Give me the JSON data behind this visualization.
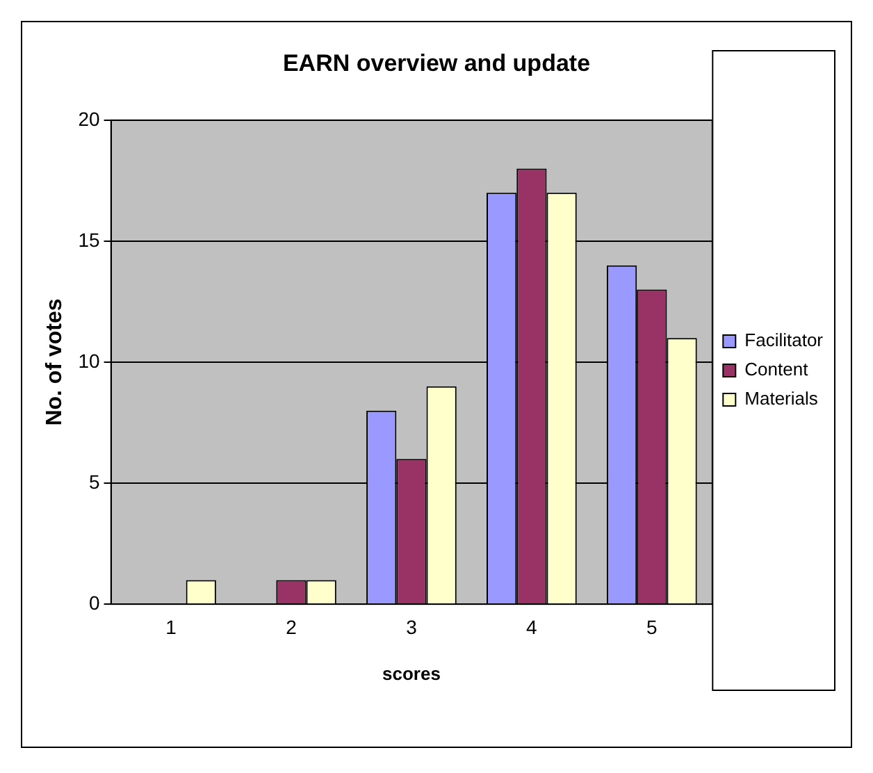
{
  "chart_data": {
    "type": "bar",
    "title": "EARN overview and update",
    "xlabel": "scores",
    "ylabel": "No. of votes",
    "categories": [
      "1",
      "2",
      "3",
      "4",
      "5"
    ],
    "series": [
      {
        "name": "Facilitator",
        "color": "#9999ff",
        "values": [
          0,
          0,
          8,
          17,
          14
        ]
      },
      {
        "name": "Content",
        "color": "#993366",
        "values": [
          0,
          1,
          6,
          18,
          13
        ]
      },
      {
        "name": "Materials",
        "color": "#ffffcc",
        "values": [
          1,
          1,
          9,
          17,
          11
        ]
      }
    ],
    "ylim": [
      0,
      20
    ],
    "yticks": [
      0,
      5,
      10,
      15,
      20
    ],
    "grid": "y",
    "legend": "right"
  }
}
